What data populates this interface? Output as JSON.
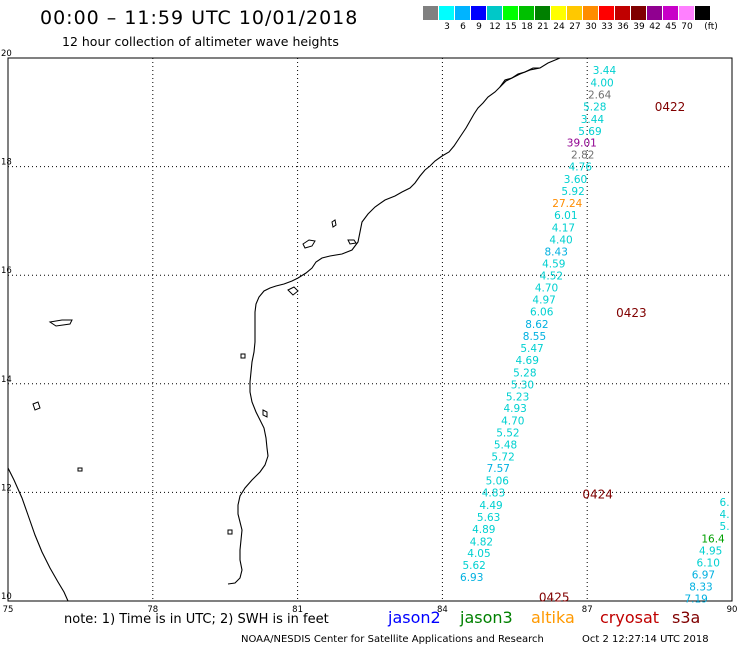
{
  "header": {
    "title": "00:00 – 11:59 UTC 10/01/2018",
    "subtitle": "12 hour collection of altimeter wave heights"
  },
  "legend": {
    "colors": [
      "#808080",
      "#00ffff",
      "#00b4ff",
      "#0000ff",
      "#00c8c8",
      "#00ff00",
      "#00c000",
      "#008000",
      "#ffff00",
      "#ffc800",
      "#ff8c00",
      "#ff0000",
      "#c00000",
      "#800000",
      "#900090",
      "#c800c8",
      "#ff80ff",
      "#000000"
    ],
    "labels": [
      "3",
      "6",
      "9",
      "12",
      "15",
      "18",
      "21",
      "24",
      "27",
      "30",
      "33",
      "36",
      "39",
      "42",
      "45",
      "70"
    ],
    "unit": "(ft)"
  },
  "map": {
    "lon_ticks": [
      "75",
      "78",
      "81",
      "84",
      "87",
      "90"
    ],
    "lat_ticks": [
      "20",
      "18",
      "16",
      "14",
      "12",
      "10"
    ],
    "lon_range": [
      75,
      90
    ],
    "lat_range": [
      10,
      20
    ]
  },
  "tracks": [
    {
      "track_label": "0422",
      "label_lat": 19.1,
      "label_lon": 88.4
    },
    {
      "track_label": "0423",
      "label_lat": 15.3,
      "label_lon": 87.6
    },
    {
      "track_label": "0424",
      "label_lat": 11.96,
      "label_lon": 86.9
    },
    {
      "track_label": "0425",
      "label_lat": 10.06,
      "label_lon": 86.0
    }
  ],
  "wave_heights": [
    {
      "value": "3.44",
      "lat": 19.78,
      "lon": 87.6,
      "color": "#00d0d0"
    },
    {
      "value": "4.00",
      "lat": 19.55,
      "lon": 87.55,
      "color": "#00d0d0"
    },
    {
      "value": "2.64",
      "lat": 19.33,
      "lon": 87.5,
      "color": "#707070"
    },
    {
      "value": "5.28",
      "lat": 19.11,
      "lon": 87.4,
      "color": "#00d0d0"
    },
    {
      "value": "3.44",
      "lat": 18.88,
      "lon": 87.35,
      "color": "#00d0d0"
    },
    {
      "value": "5.69",
      "lat": 18.66,
      "lon": 87.3,
      "color": "#00d0d0"
    },
    {
      "value": "39.01",
      "lat": 18.44,
      "lon": 87.2,
      "color": "#900090"
    },
    {
      "value": "2.82",
      "lat": 18.22,
      "lon": 87.15,
      "color": "#707070"
    },
    {
      "value": "4.76",
      "lat": 18.0,
      "lon": 87.1,
      "color": "#00d0d0"
    },
    {
      "value": "3.60",
      "lat": 17.77,
      "lon": 87.0,
      "color": "#00d0d0"
    },
    {
      "value": "5.92",
      "lat": 17.55,
      "lon": 86.95,
      "color": "#00d0d0"
    },
    {
      "value": "27.24",
      "lat": 17.33,
      "lon": 86.9,
      "color": "#ff8c00"
    },
    {
      "value": "6.01",
      "lat": 17.11,
      "lon": 86.8,
      "color": "#00d0d0"
    },
    {
      "value": "4.17",
      "lat": 16.88,
      "lon": 86.75,
      "color": "#00d0d0"
    },
    {
      "value": "4.40",
      "lat": 16.66,
      "lon": 86.7,
      "color": "#00d0d0"
    },
    {
      "value": "8.43",
      "lat": 16.44,
      "lon": 86.6,
      "color": "#00b0e0"
    },
    {
      "value": "4.59",
      "lat": 16.22,
      "lon": 86.55,
      "color": "#00d0d0"
    },
    {
      "value": "4.52",
      "lat": 15.99,
      "lon": 86.5,
      "color": "#00d0d0"
    },
    {
      "value": "4.70",
      "lat": 15.77,
      "lon": 86.4,
      "color": "#00d0d0"
    },
    {
      "value": "4.97",
      "lat": 15.55,
      "lon": 86.35,
      "color": "#00d0d0"
    },
    {
      "value": "6.06",
      "lat": 15.33,
      "lon": 86.3,
      "color": "#00d0d0"
    },
    {
      "value": "8.62",
      "lat": 15.1,
      "lon": 86.2,
      "color": "#00b0e0"
    },
    {
      "value": "8.55",
      "lat": 14.88,
      "lon": 86.15,
      "color": "#00b0e0"
    },
    {
      "value": "5.47",
      "lat": 14.66,
      "lon": 86.1,
      "color": "#00d0d0"
    },
    {
      "value": "4.69",
      "lat": 14.44,
      "lon": 86.0,
      "color": "#00d0d0"
    },
    {
      "value": "5.28",
      "lat": 14.21,
      "lon": 85.95,
      "color": "#00d0d0"
    },
    {
      "value": "5.30",
      "lat": 13.99,
      "lon": 85.9,
      "color": "#00d0d0"
    },
    {
      "value": "5.23",
      "lat": 13.77,
      "lon": 85.8,
      "color": "#00d0d0"
    },
    {
      "value": "4.93",
      "lat": 13.55,
      "lon": 85.75,
      "color": "#00d0d0"
    },
    {
      "value": "4.70",
      "lat": 13.32,
      "lon": 85.7,
      "color": "#00d0d0"
    },
    {
      "value": "5.52",
      "lat": 13.1,
      "lon": 85.6,
      "color": "#00d0d0"
    },
    {
      "value": "5.48",
      "lat": 12.88,
      "lon": 85.55,
      "color": "#00d0d0"
    },
    {
      "value": "5.72",
      "lat": 12.66,
      "lon": 85.5,
      "color": "#00d0d0"
    },
    {
      "value": "7.57",
      "lat": 12.45,
      "lon": 85.4,
      "color": "#00b0e0"
    },
    {
      "value": "5.06",
      "lat": 12.22,
      "lon": 85.38,
      "color": "#00d0d0"
    },
    {
      "value": "4.83",
      "lat": 12.0,
      "lon": 85.3,
      "color": "#00d0d0"
    },
    {
      "value": "4.49",
      "lat": 11.77,
      "lon": 85.25,
      "color": "#00d0d0"
    },
    {
      "value": "5.63",
      "lat": 11.55,
      "lon": 85.2,
      "color": "#00d0d0"
    },
    {
      "value": "4.89",
      "lat": 11.33,
      "lon": 85.1,
      "color": "#00d0d0"
    },
    {
      "value": "4.82",
      "lat": 11.1,
      "lon": 85.05,
      "color": "#00d0d0"
    },
    {
      "value": "4.05",
      "lat": 10.88,
      "lon": 85.0,
      "color": "#00d0d0"
    },
    {
      "value": "5.62",
      "lat": 10.66,
      "lon": 84.9,
      "color": "#00d0d0"
    },
    {
      "value": "6.93",
      "lat": 10.44,
      "lon": 84.85,
      "color": "#00b0e0"
    },
    {
      "value": "6.",
      "lat": 11.82,
      "lon": 89.95,
      "color": "#00d0d0"
    },
    {
      "value": "4.",
      "lat": 11.6,
      "lon": 89.95,
      "color": "#00d0d0"
    },
    {
      "value": "5.",
      "lat": 11.38,
      "lon": 89.95,
      "color": "#00d0d0"
    },
    {
      "value": "16.4",
      "lat": 11.15,
      "lon": 89.85,
      "color": "#00a000"
    },
    {
      "value": "4.95",
      "lat": 10.93,
      "lon": 89.8,
      "color": "#00d0d0"
    },
    {
      "value": "6.10",
      "lat": 10.71,
      "lon": 89.75,
      "color": "#00d0d0"
    },
    {
      "value": "6.97",
      "lat": 10.49,
      "lon": 89.65,
      "color": "#00b0e0"
    },
    {
      "value": "8.33",
      "lat": 10.27,
      "lon": 89.6,
      "color": "#00b0e0"
    },
    {
      "value": "7.19",
      "lat": 10.05,
      "lon": 89.5,
      "color": "#00b0e0"
    }
  ],
  "footer": {
    "note": "note: 1) Time is in UTC; 2) SWH is in feet",
    "satellites": [
      {
        "name": "jason2",
        "color": "#0000ff"
      },
      {
        "name": "jason3",
        "color": "#008000"
      },
      {
        "name": "altika",
        "color": "#ff9900"
      },
      {
        "name": "cryosat",
        "color": "#c00000"
      },
      {
        "name": "s3a",
        "color": "#800000"
      }
    ],
    "credit": "NOAA/NESDIS Center for Satellite Applications and Research",
    "date": "Oct  2 12:27:14 UTC 2018"
  }
}
